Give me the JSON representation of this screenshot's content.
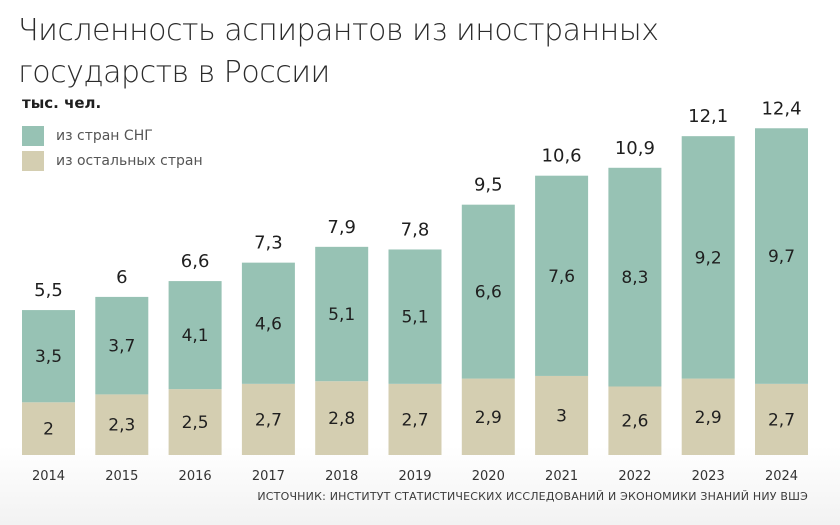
{
  "colors": {
    "cis": "#97c2b4",
    "other": "#d4ceb1",
    "text": "#1f1f1f",
    "axis_text": "#333333"
  },
  "title": "Численность аспирантов из иностранных государств в России",
  "unit_label": "тыс. чел.",
  "legend": [
    {
      "label": "из стран СНГ",
      "color": "#97c2b4"
    },
    {
      "label": "из остальных стран",
      "color": "#d4ceb1"
    }
  ],
  "source": "ИСТОЧНИК: ИНСТИТУТ СТАТИСТИЧЕСКИХ ИССЛЕДОВАНИЙ И ЭКОНОМИКИ ЗНАНИЙ НИУ ВШЭ",
  "chart_data": {
    "type": "bar",
    "stacked": true,
    "title": "Численность аспирантов из иностранных государств в России",
    "ylabel": "тыс. чел.",
    "categories": [
      "2014",
      "2015",
      "2016",
      "2017",
      "2018",
      "2019",
      "2020",
      "2021",
      "2022",
      "2023",
      "2024"
    ],
    "series": [
      {
        "name": "из остальных стран",
        "values": [
          2,
          2.3,
          2.5,
          2.7,
          2.8,
          2.7,
          2.9,
          3,
          2.6,
          2.9,
          2.7
        ],
        "labels": [
          "2",
          "2,3",
          "2,5",
          "2,7",
          "2,8",
          "2,7",
          "2,9",
          "3",
          "2,6",
          "2,9",
          "2,7"
        ]
      },
      {
        "name": "из стран СНГ",
        "values": [
          3.5,
          3.7,
          4.1,
          4.6,
          5.1,
          5.1,
          6.6,
          7.6,
          8.3,
          9.2,
          9.7
        ],
        "labels": [
          "3,5",
          "3,7",
          "4,1",
          "4,6",
          "5,1",
          "5,1",
          "6,6",
          "7,6",
          "8,3",
          "9,2",
          "9,7"
        ]
      }
    ],
    "totals": [
      5.5,
      6,
      6.6,
      7.3,
      7.9,
      7.8,
      9.5,
      10.6,
      10.9,
      12.1,
      12.4
    ],
    "total_labels": [
      "5,5",
      "6",
      "6,6",
      "7,3",
      "7,9",
      "7,8",
      "9,5",
      "10,6",
      "10,9",
      "12,1",
      "12,4"
    ],
    "ylim": [
      0,
      12.4
    ],
    "grid": false,
    "legend_position": "top-left"
  }
}
